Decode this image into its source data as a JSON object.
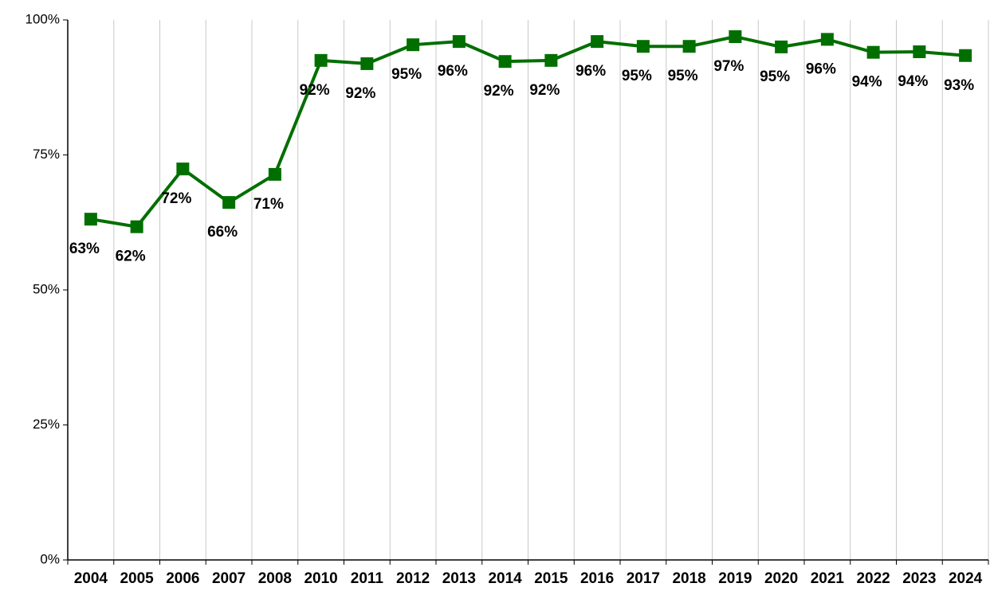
{
  "chart_data": {
    "type": "line",
    "categories": [
      "2004",
      "2005",
      "2006",
      "2007",
      "2008",
      "2010",
      "2011",
      "2012",
      "2013",
      "2014",
      "2015",
      "2016",
      "2017",
      "2018",
      "2019",
      "2020",
      "2021",
      "2022",
      "2023",
      "2024"
    ],
    "series": [
      {
        "color": "#006f00",
        "values": [
          63.1,
          61.7,
          72.4,
          66.2,
          71.4,
          92.5,
          91.9,
          95.4,
          96.0,
          92.3,
          92.5,
          96.0,
          95.1,
          95.1,
          96.9,
          95.0,
          96.4,
          94.0,
          94.1,
          93.4
        ],
        "value_labels": [
          "63%",
          "62%",
          "72%",
          "66%",
          "71%",
          "92%",
          "92%",
          "95%",
          "96%",
          "92%",
          "92%",
          "96%",
          "95%",
          "95%",
          "97%",
          "95%",
          "96%",
          "94%",
          "94%",
          "93%"
        ]
      }
    ],
    "ylim": [
      0,
      100
    ],
    "yticks": [
      {
        "value": 0,
        "label": "0%"
      },
      {
        "value": 25,
        "label": "25%"
      },
      {
        "value": 50,
        "label": "50%"
      },
      {
        "value": 75,
        "label": "75%"
      },
      {
        "value": 100,
        "label": "100%"
      }
    ],
    "grid": true
  }
}
